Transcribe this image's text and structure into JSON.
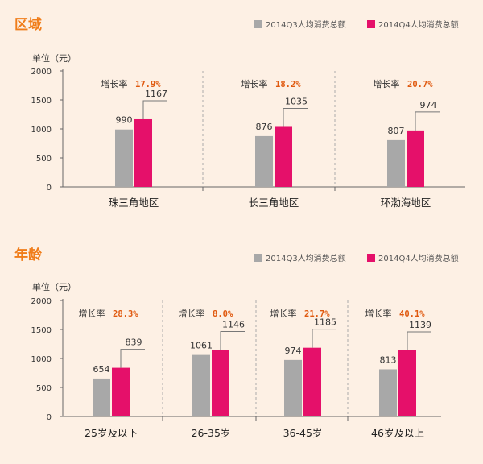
{
  "colors": {
    "title": "#f07d1a",
    "q3": "#a8a8a8",
    "q4": "#e5106a",
    "growth": "#e05a10",
    "background": "#fdf0e4",
    "axis": "#666666",
    "divider": "#aaaaaa"
  },
  "chart_data": [
    {
      "type": "bar",
      "title": "区域",
      "ylabel": "单位（元）",
      "ylim": [
        0,
        2000
      ],
      "yticks": [
        "0",
        "500",
        "1000",
        "1500",
        "2000"
      ],
      "categories": [
        "珠三角地区",
        "长三角地区",
        "环渤海地区"
      ],
      "series": [
        {
          "name": "2014Q3人均消费总额",
          "values": [
            990,
            876,
            807
          ]
        },
        {
          "name": "2014Q4人均消费总额",
          "values": [
            1167,
            1035,
            974
          ]
        }
      ],
      "growth_label": "增长率",
      "growth": [
        "17.9%",
        "18.2%",
        "20.7%"
      ],
      "legend": "top-right"
    },
    {
      "type": "bar",
      "title": "年龄",
      "ylabel": "单位（元）",
      "ylim": [
        0,
        2000
      ],
      "yticks": [
        "0",
        "500",
        "1000",
        "1500",
        "2000"
      ],
      "categories": [
        "25岁及以下",
        "26-35岁",
        "36-45岁",
        "46岁及以上"
      ],
      "series": [
        {
          "name": "2014Q3人均消费总额",
          "values": [
            654,
            1061,
            974,
            813
          ]
        },
        {
          "name": "2014Q4人均消费总额",
          "values": [
            839,
            1146,
            1185,
            1139
          ]
        }
      ],
      "growth_label": "增长率",
      "growth": [
        "28.3%",
        "8.0%",
        "21.7%",
        "40.1%"
      ],
      "legend": "top-right"
    }
  ]
}
